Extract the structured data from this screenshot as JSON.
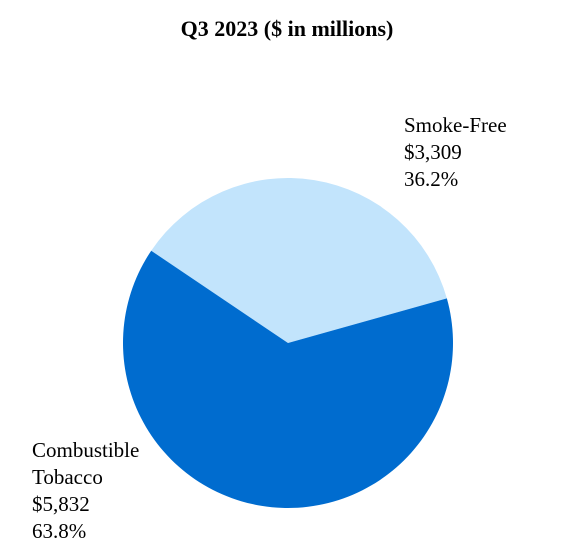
{
  "chart_data": {
    "type": "pie",
    "title": "Q3 2023 ($ in millions)",
    "slices": [
      {
        "name_lines": [
          "Smoke-Free"
        ],
        "value": 3309,
        "value_label": "$3,309",
        "percent": 36.2,
        "percent_label": "36.2%",
        "color": "#C2E4FC"
      },
      {
        "name_lines": [
          "Combustible",
          "Tobacco"
        ],
        "value": 5832,
        "value_label": "$5,832",
        "percent": 63.8,
        "percent_label": "63.8%",
        "color": "#006CCF"
      }
    ]
  }
}
